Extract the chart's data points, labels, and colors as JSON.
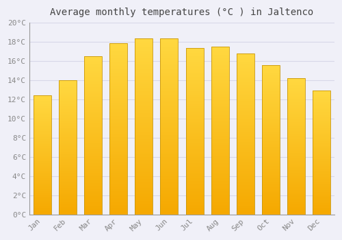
{
  "title": "Average monthly temperatures (°C ) in Jaltenco",
  "months": [
    "Jan",
    "Feb",
    "Mar",
    "Apr",
    "May",
    "Jun",
    "Jul",
    "Aug",
    "Sep",
    "Oct",
    "Nov",
    "Dec"
  ],
  "temperatures": [
    12.4,
    14.0,
    16.5,
    17.9,
    18.4,
    18.4,
    17.4,
    17.5,
    16.8,
    15.6,
    14.2,
    12.9
  ],
  "bar_color_bottom": "#F5A800",
  "bar_color_top": "#FFD840",
  "bar_edge_color": "#C8960A",
  "ylim": [
    0,
    20
  ],
  "ytick_step": 2,
  "background_color": "#f0f0f8",
  "plot_bg_color": "#f0f0f8",
  "grid_color": "#d8d8e8",
  "tick_label_color": "#888888",
  "title_color": "#444444",
  "font_family": "monospace",
  "title_fontsize": 10,
  "tick_fontsize": 8,
  "bar_width": 0.7
}
